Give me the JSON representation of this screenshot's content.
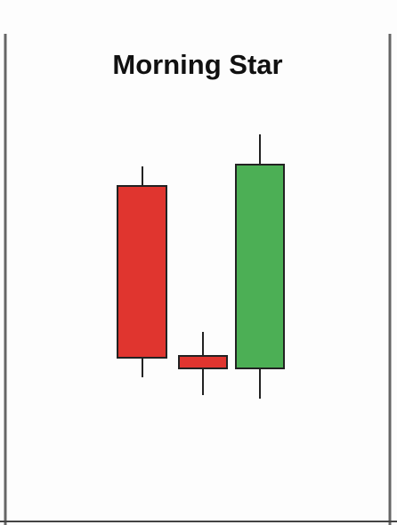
{
  "title": "Morning Star"
}
